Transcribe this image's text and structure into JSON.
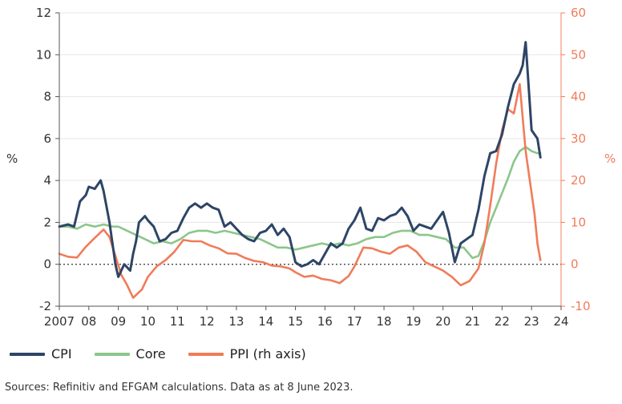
{
  "chart_data": {
    "type": "line",
    "title": "",
    "source": "Sources: Refinitiv and EFGAM calculations. Data as at 8 June 2023.",
    "x_ticks": [
      "2007",
      "08",
      "09",
      "10",
      "11",
      "12",
      "13",
      "14",
      "15",
      "16",
      "17",
      "18",
      "19",
      "20",
      "21",
      "22",
      "23",
      "24"
    ],
    "xlim": [
      2007.0,
      2024.0
    ],
    "y_left": {
      "label": "%",
      "ylim": [
        -2,
        12
      ],
      "ticks": [
        "-2",
        "0",
        "2",
        "4",
        "6",
        "8",
        "10",
        "12"
      ]
    },
    "y_right": {
      "label": "%",
      "ylim": [
        -10,
        60
      ],
      "ticks": [
        "-10",
        "0",
        "10",
        "20",
        "30",
        "40",
        "50",
        "60"
      ]
    },
    "zero_line": "dotted",
    "grid": "horizontal",
    "legend_position": "bottom-left",
    "colors": {
      "CPI": "#2e4566",
      "Core": "#8cc68a",
      "PPI": "#f07c5a"
    },
    "series": [
      {
        "name": "CPI",
        "axis": "left",
        "x": [
          2007.0,
          2007.3,
          2007.5,
          2007.7,
          2007.9,
          2008.0,
          2008.2,
          2008.4,
          2008.5,
          2008.7,
          2008.8,
          2008.9,
          2009.0,
          2009.2,
          2009.4,
          2009.5,
          2009.6,
          2009.7,
          2009.9,
          2010.0,
          2010.2,
          2010.4,
          2010.6,
          2010.8,
          2011.0,
          2011.2,
          2011.4,
          2011.6,
          2011.8,
          2012.0,
          2012.2,
          2012.4,
          2012.6,
          2012.8,
          2013.0,
          2013.2,
          2013.4,
          2013.6,
          2013.8,
          2014.0,
          2014.2,
          2014.4,
          2014.6,
          2014.8,
          2015.0,
          2015.2,
          2015.4,
          2015.6,
          2015.8,
          2016.0,
          2016.2,
          2016.4,
          2016.6,
          2016.8,
          2017.0,
          2017.2,
          2017.4,
          2017.6,
          2017.8,
          2018.0,
          2018.2,
          2018.4,
          2018.6,
          2018.8,
          2019.0,
          2019.2,
          2019.4,
          2019.6,
          2019.8,
          2020.0,
          2020.2,
          2020.4,
          2020.6,
          2020.8,
          2021.0,
          2021.2,
          2021.4,
          2021.6,
          2021.8,
          2022.0,
          2022.2,
          2022.4,
          2022.6,
          2022.7,
          2022.8,
          2023.0,
          2023.2,
          2023.3
        ],
        "values": [
          1.8,
          1.9,
          1.8,
          3.0,
          3.3,
          3.7,
          3.6,
          4.0,
          3.5,
          2.0,
          1.0,
          0.0,
          -0.6,
          0.0,
          -0.3,
          0.5,
          1.1,
          2.0,
          2.3,
          2.1,
          1.8,
          1.1,
          1.2,
          1.5,
          1.6,
          2.2,
          2.7,
          2.9,
          2.7,
          2.9,
          2.7,
          2.6,
          1.8,
          2.0,
          1.7,
          1.4,
          1.2,
          1.1,
          1.5,
          1.6,
          1.9,
          1.4,
          1.7,
          1.3,
          0.1,
          -0.1,
          0.0,
          0.2,
          0.0,
          0.5,
          1.0,
          0.8,
          1.0,
          1.7,
          2.1,
          2.7,
          1.7,
          1.6,
          2.2,
          2.1,
          2.3,
          2.4,
          2.7,
          2.3,
          1.6,
          1.9,
          1.8,
          1.7,
          2.1,
          2.5,
          1.5,
          0.1,
          1.0,
          1.2,
          1.4,
          2.6,
          4.2,
          5.3,
          5.4,
          6.2,
          7.5,
          8.6,
          9.1,
          9.5,
          10.6,
          6.4,
          6.0,
          5.1
        ]
      },
      {
        "name": "Core",
        "axis": "left",
        "x": [
          2007.0,
          2007.3,
          2007.6,
          2007.9,
          2008.2,
          2008.5,
          2008.8,
          2009.0,
          2009.3,
          2009.6,
          2009.9,
          2010.2,
          2010.5,
          2010.8,
          2011.1,
          2011.4,
          2011.7,
          2012.0,
          2012.3,
          2012.6,
          2012.9,
          2013.2,
          2013.5,
          2013.8,
          2014.1,
          2014.4,
          2014.7,
          2015.0,
          2015.3,
          2015.6,
          2015.9,
          2016.2,
          2016.5,
          2016.8,
          2017.1,
          2017.4,
          2017.7,
          2018.0,
          2018.3,
          2018.6,
          2018.9,
          2019.2,
          2019.5,
          2019.8,
          2020.1,
          2020.4,
          2020.7,
          2021.0,
          2021.2,
          2021.4,
          2021.6,
          2021.8,
          2022.0,
          2022.2,
          2022.4,
          2022.6,
          2022.8,
          2023.0,
          2023.2,
          2023.3
        ],
        "values": [
          1.8,
          1.8,
          1.7,
          1.9,
          1.8,
          1.9,
          1.8,
          1.8,
          1.6,
          1.4,
          1.2,
          1.0,
          1.1,
          1.0,
          1.2,
          1.5,
          1.6,
          1.6,
          1.5,
          1.6,
          1.5,
          1.4,
          1.3,
          1.2,
          1.0,
          0.8,
          0.8,
          0.7,
          0.8,
          0.9,
          1.0,
          0.9,
          1.0,
          0.9,
          1.0,
          1.2,
          1.3,
          1.3,
          1.5,
          1.6,
          1.6,
          1.4,
          1.4,
          1.3,
          1.2,
          0.8,
          0.8,
          0.3,
          0.4,
          1.1,
          2.0,
          2.7,
          3.4,
          4.1,
          4.9,
          5.4,
          5.6,
          5.4,
          5.3,
          5.3
        ]
      },
      {
        "name": "PPI (rh axis)",
        "axis": "right",
        "x": [
          2007.0,
          2007.3,
          2007.6,
          2007.9,
          2008.2,
          2008.5,
          2008.7,
          2008.9,
          2009.1,
          2009.3,
          2009.5,
          2009.8,
          2010.0,
          2010.3,
          2010.6,
          2010.9,
          2011.2,
          2011.5,
          2011.8,
          2012.1,
          2012.4,
          2012.7,
          2013.0,
          2013.3,
          2013.6,
          2013.9,
          2014.2,
          2014.5,
          2014.8,
          2015.0,
          2015.3,
          2015.6,
          2015.9,
          2016.2,
          2016.5,
          2016.8,
          2017.0,
          2017.3,
          2017.6,
          2017.9,
          2018.2,
          2018.5,
          2018.8,
          2019.1,
          2019.4,
          2019.7,
          2020.0,
          2020.3,
          2020.6,
          2020.9,
          2021.2,
          2021.4,
          2021.6,
          2021.8,
          2022.0,
          2022.2,
          2022.4,
          2022.6,
          2022.8,
          2023.0,
          2023.1,
          2023.2,
          2023.3
        ],
        "values": [
          2.5,
          1.8,
          1.6,
          4.2,
          6.3,
          8.3,
          6.5,
          2.0,
          -2.5,
          -5.0,
          -8.0,
          -6.0,
          -3.0,
          -0.5,
          1.0,
          3.0,
          5.8,
          5.5,
          5.5,
          4.5,
          3.8,
          2.6,
          2.5,
          1.5,
          0.8,
          0.5,
          -0.3,
          -0.5,
          -1.0,
          -1.9,
          -3.0,
          -2.7,
          -3.5,
          -3.8,
          -4.5,
          -2.8,
          -0.5,
          4.0,
          3.8,
          3.0,
          2.5,
          4.0,
          4.5,
          3.0,
          0.5,
          -0.5,
          -1.5,
          -3.0,
          -5.0,
          -4.0,
          -1.0,
          5.0,
          14.0,
          24.0,
          32.0,
          37.0,
          36.0,
          43.0,
          27.0,
          17.0,
          12.0,
          5.0,
          1.0
        ]
      }
    ]
  },
  "legend": {
    "items": [
      {
        "label": "CPI",
        "color": "#2e4566"
      },
      {
        "label": "Core",
        "color": "#8cc68a"
      },
      {
        "label": "PPI (rh axis)",
        "color": "#f07c5a"
      }
    ]
  }
}
